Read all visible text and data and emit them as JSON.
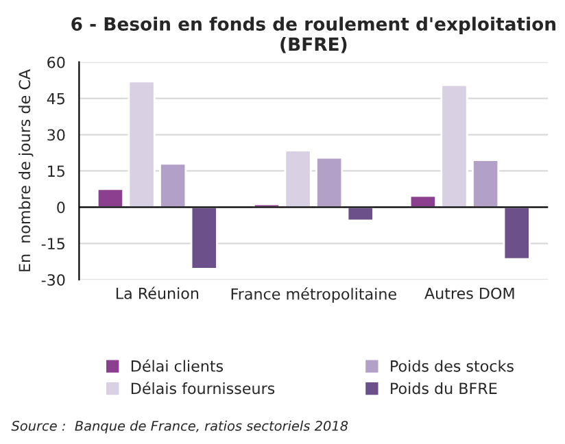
{
  "chart_data": {
    "type": "bar",
    "title": "6 - Besoin en fonds de roulement d'exploitation\n(BFRE)",
    "ylabel": "En  nombre de jours de CA",
    "categories": [
      "La Réunion",
      "France métropolitaine",
      "Autres DOM"
    ],
    "series": [
      {
        "name": "Délai clients",
        "color": "#8b3f8f",
        "values": [
          7.5,
          1.2,
          4.7
        ]
      },
      {
        "name": "Délais fournisseurs",
        "color": "#d9d0e3",
        "values": [
          52,
          23.5,
          50.5
        ]
      },
      {
        "name": "Poids des stocks",
        "color": "#b2a0c8",
        "values": [
          18,
          20.5,
          19.5
        ]
      },
      {
        "name": "Poids du BFRE",
        "color": "#6b5089",
        "values": [
          -25.5,
          -5.5,
          -21.5
        ]
      }
    ],
    "ylim": [
      -30,
      60
    ],
    "yticks": [
      -30,
      -15,
      0,
      15,
      30,
      45,
      60
    ],
    "grid": "y",
    "legend": "bottom",
    "annotations": [
      "Source :  Banque de France, ratios sectoriels 2018"
    ]
  }
}
